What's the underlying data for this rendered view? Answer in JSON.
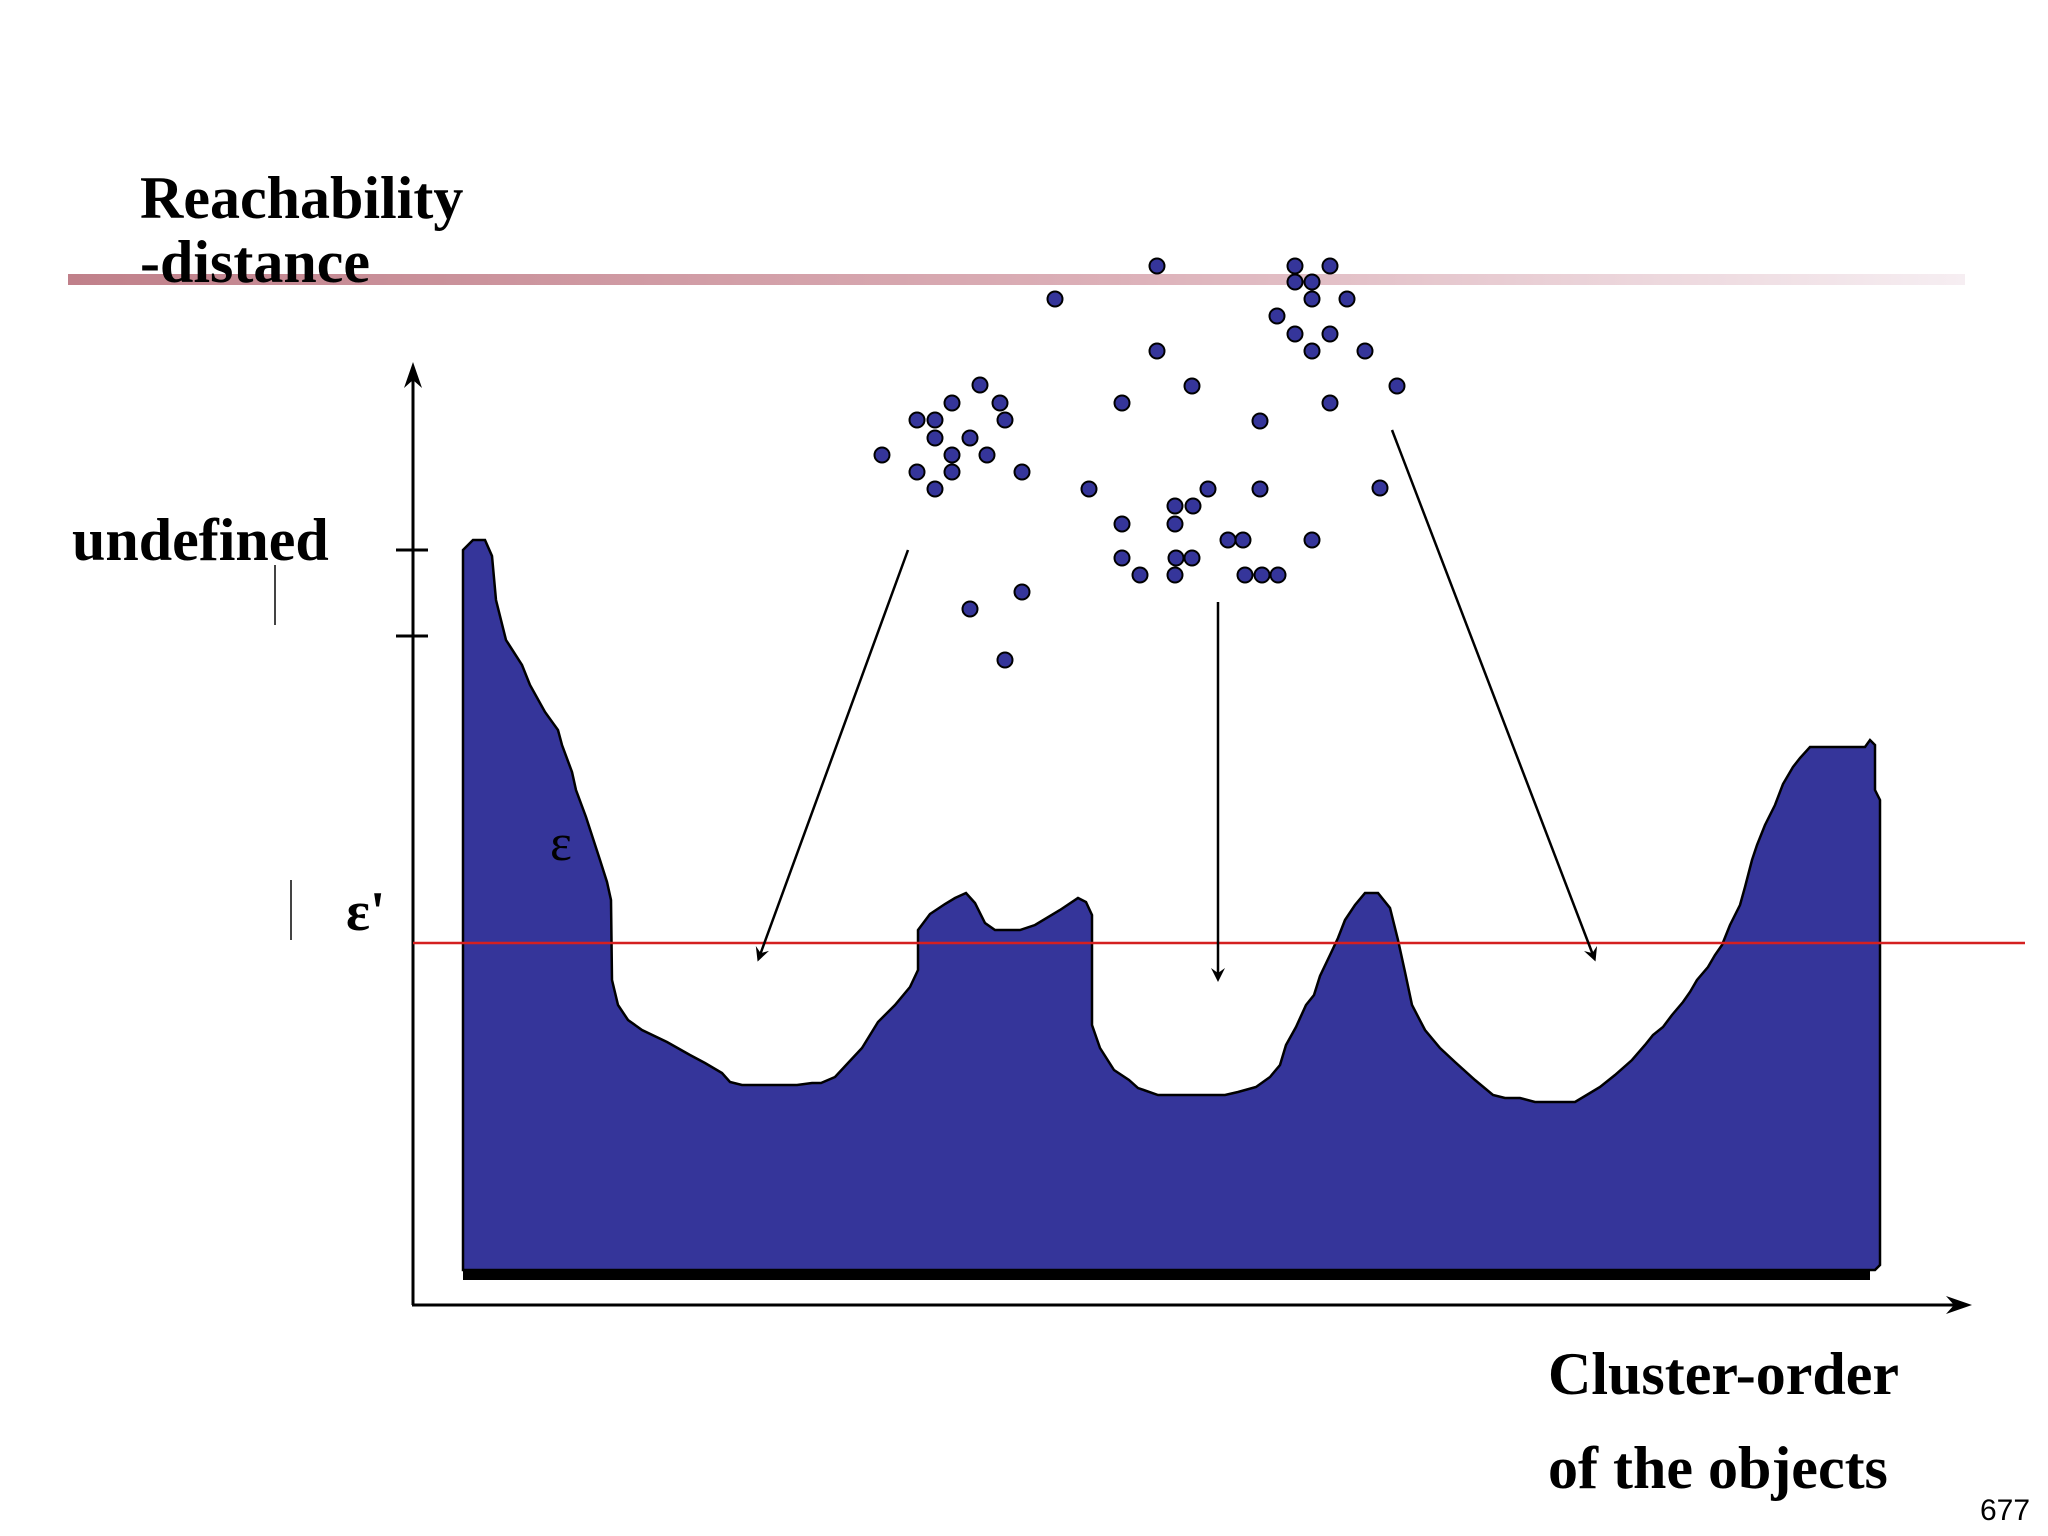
{
  "slide": {
    "page_number": "677",
    "accent_bar_color": "#c0808a"
  },
  "diagram": {
    "y_axis_label_line1": "Reachability",
    "y_axis_label_line2": "-distance",
    "x_axis_label_line1": "Cluster-order",
    "x_axis_label_line2": "of the objects",
    "undefined_label": "undefined",
    "epsilon_label": "ε",
    "epsilon_prime_label": "ε'",
    "threshold_line_color": "#d42020",
    "area_fill_color": "#35359a",
    "point_color": "#35359a"
  }
}
